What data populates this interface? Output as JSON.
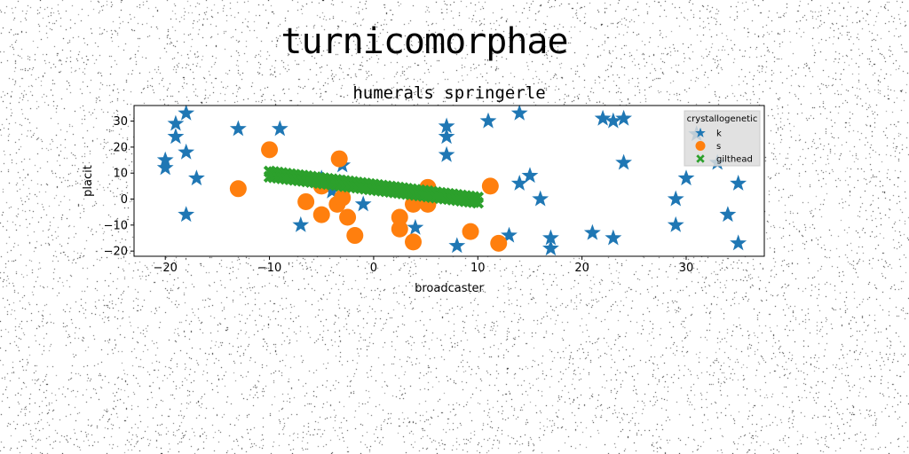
{
  "figure": {
    "title": "turnicomorphae"
  },
  "chart_data": {
    "type": "scatter",
    "title": "humerals springerle",
    "xlabel": "broadcaster",
    "ylabel": "placit",
    "xlim": [
      -23,
      37.5
    ],
    "ylim": [
      -22,
      36
    ],
    "xticks": [
      -20,
      -10,
      0,
      10,
      20,
      30
    ],
    "xtick_labels": [
      "−20",
      "−10",
      "0",
      "10",
      "20",
      "30"
    ],
    "yticks": [
      -20,
      -10,
      0,
      10,
      20,
      30
    ],
    "ytick_labels": [
      "−20",
      "−10",
      "0",
      "10",
      "20",
      "30"
    ],
    "grid": false,
    "legend": {
      "title": "crystallogenetic",
      "placement": "top-right"
    },
    "series": [
      {
        "name": "k",
        "marker": "star",
        "color": "#1f77b4",
        "points": [
          [
            -20,
            15
          ],
          [
            -20,
            12
          ],
          [
            -19,
            29
          ],
          [
            -19,
            24
          ],
          [
            -18,
            33
          ],
          [
            -18,
            18
          ],
          [
            -18,
            -6
          ],
          [
            -17,
            8
          ],
          [
            -13,
            27
          ],
          [
            -9,
            27
          ],
          [
            -7,
            -10
          ],
          [
            -5,
            8
          ],
          [
            -4,
            3
          ],
          [
            -3,
            6
          ],
          [
            -3,
            13
          ],
          [
            -1,
            -2
          ],
          [
            4,
            -11
          ],
          [
            7,
            28
          ],
          [
            7,
            24
          ],
          [
            7,
            17
          ],
          [
            8,
            -18
          ],
          [
            11,
            30
          ],
          [
            13,
            -14
          ],
          [
            14,
            33
          ],
          [
            14,
            6
          ],
          [
            15,
            9
          ],
          [
            16,
            0
          ],
          [
            17,
            -15
          ],
          [
            17,
            -19
          ],
          [
            21,
            -13
          ],
          [
            22,
            31
          ],
          [
            23,
            30
          ],
          [
            23,
            -15
          ],
          [
            24,
            31
          ],
          [
            24,
            14
          ],
          [
            29,
            0
          ],
          [
            29,
            -10
          ],
          [
            30,
            8
          ],
          [
            31,
            25
          ],
          [
            33,
            14
          ],
          [
            34,
            -6
          ],
          [
            35,
            6
          ],
          [
            35,
            -17
          ]
        ]
      },
      {
        "name": "s",
        "color": "#ff7f0e",
        "marker": "circle",
        "points": [
          [
            -13,
            4
          ],
          [
            -10,
            19
          ],
          [
            -6.5,
            -1
          ],
          [
            -5,
            5
          ],
          [
            -5,
            -6
          ],
          [
            -3.5,
            -2
          ],
          [
            -3.3,
            15.5
          ],
          [
            -3,
            0.5
          ],
          [
            -2.5,
            -7
          ],
          [
            -1.8,
            -14
          ],
          [
            2.5,
            -7
          ],
          [
            2.5,
            -11.5
          ],
          [
            3.8,
            -2
          ],
          [
            3.8,
            -16.5
          ],
          [
            5.2,
            4.5
          ],
          [
            5.2,
            -2
          ],
          [
            9.3,
            -12.5
          ],
          [
            11.2,
            5
          ],
          [
            12,
            -17
          ]
        ]
      },
      {
        "name": "gilthead",
        "color": "#2ca02c",
        "marker": "x",
        "points": [
          [
            -10,
            10.6
          ],
          [
            -9.6,
            10.4
          ],
          [
            -9.2,
            10.2
          ],
          [
            -8.8,
            10.0
          ],
          [
            -8.4,
            9.8
          ],
          [
            -8.0,
            9.6
          ],
          [
            -7.6,
            9.4
          ],
          [
            -7.2,
            9.2
          ],
          [
            -6.8,
            9.0
          ],
          [
            -6.4,
            8.8
          ],
          [
            -6.0,
            8.6
          ],
          [
            -5.6,
            8.4
          ],
          [
            -5.2,
            8.2
          ],
          [
            -4.8,
            8.0
          ],
          [
            -4.4,
            7.8
          ],
          [
            -4.0,
            7.6
          ],
          [
            -3.6,
            7.4
          ],
          [
            -3.2,
            7.2
          ],
          [
            -2.8,
            7.0
          ],
          [
            -2.4,
            6.8
          ],
          [
            -2.0,
            6.6
          ],
          [
            -1.6,
            6.4
          ],
          [
            -1.2,
            6.2
          ],
          [
            -0.8,
            6.0
          ],
          [
            -0.4,
            5.8
          ],
          [
            0.0,
            5.6
          ],
          [
            0.4,
            5.4
          ],
          [
            0.8,
            5.2
          ],
          [
            1.2,
            5.0
          ],
          [
            1.6,
            4.8
          ],
          [
            2.0,
            4.6
          ],
          [
            2.4,
            4.4
          ],
          [
            2.8,
            4.2
          ],
          [
            3.2,
            4.0
          ],
          [
            3.6,
            3.8
          ],
          [
            4.0,
            3.6
          ],
          [
            4.4,
            3.4
          ],
          [
            4.8,
            3.2
          ],
          [
            5.2,
            3.0
          ],
          [
            5.6,
            2.8
          ],
          [
            6.0,
            2.6
          ],
          [
            6.4,
            2.4
          ],
          [
            6.8,
            2.2
          ],
          [
            7.2,
            2.0
          ],
          [
            7.6,
            1.8
          ],
          [
            8.0,
            1.6
          ],
          [
            8.4,
            1.4
          ],
          [
            8.8,
            1.2
          ],
          [
            9.2,
            1.0
          ],
          [
            9.6,
            0.8
          ],
          [
            10.0,
            0.6
          ],
          [
            -10,
            8.6
          ],
          [
            -9.6,
            8.4
          ],
          [
            -9.2,
            8.2
          ],
          [
            -8.8,
            8.0
          ],
          [
            -8.4,
            7.8
          ],
          [
            -8.0,
            7.6
          ],
          [
            -7.6,
            7.4
          ],
          [
            -7.2,
            7.2
          ],
          [
            -6.8,
            7.0
          ],
          [
            -6.4,
            6.8
          ],
          [
            -6.0,
            6.6
          ],
          [
            -5.6,
            6.4
          ],
          [
            -5.2,
            6.2
          ],
          [
            -4.8,
            6.0
          ],
          [
            -4.4,
            5.8
          ],
          [
            -4.0,
            5.6
          ],
          [
            -3.6,
            5.4
          ],
          [
            -3.2,
            5.2
          ],
          [
            -2.8,
            5.0
          ],
          [
            -2.4,
            4.8
          ],
          [
            -2.0,
            4.6
          ],
          [
            -1.6,
            4.4
          ],
          [
            -1.2,
            4.2
          ],
          [
            -0.8,
            4.0
          ],
          [
            -0.4,
            3.8
          ],
          [
            0.0,
            3.6
          ],
          [
            0.4,
            3.4
          ],
          [
            0.8,
            3.2
          ],
          [
            1.2,
            3.0
          ],
          [
            1.6,
            2.8
          ],
          [
            2.0,
            2.6
          ],
          [
            2.4,
            2.4
          ],
          [
            2.8,
            2.2
          ],
          [
            3.2,
            2.0
          ],
          [
            3.6,
            1.8
          ],
          [
            4.0,
            1.6
          ],
          [
            4.4,
            1.4
          ],
          [
            4.8,
            1.2
          ],
          [
            5.2,
            1.0
          ],
          [
            5.6,
            0.8
          ],
          [
            6.0,
            0.6
          ],
          [
            6.4,
            0.4
          ],
          [
            6.8,
            0.2
          ],
          [
            7.2,
            0.0
          ],
          [
            7.6,
            -0.2
          ],
          [
            8.0,
            -0.4
          ],
          [
            8.4,
            -0.6
          ],
          [
            8.8,
            -0.8
          ],
          [
            9.2,
            -1.0
          ],
          [
            9.6,
            -1.2
          ],
          [
            10.0,
            -1.4
          ]
        ]
      }
    ]
  }
}
